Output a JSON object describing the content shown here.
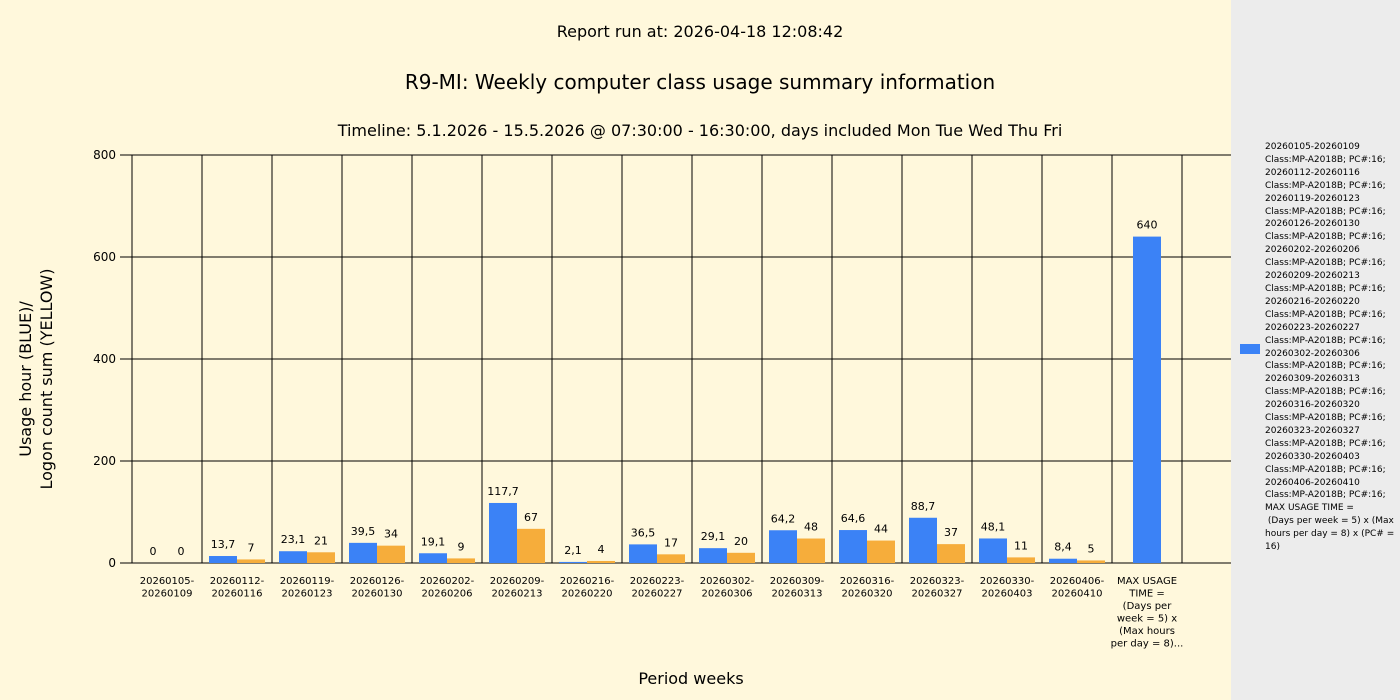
{
  "header": {
    "report_run": "Report run at: 2026-04-18 12:08:42",
    "title": "R9-MI: Weekly computer class usage summary information",
    "timeline": "Timeline:  5.1.2026  - 15.5.2026  @  07:30:00 -  16:30:00, days included Mon Tue Wed Thu Fri"
  },
  "chart_data": {
    "type": "bar",
    "xlabel": "Period weeks",
    "ylabel": "Usage hour (BLUE)/\nLogon count sum (YELLOW)",
    "ylim": [
      0,
      800
    ],
    "yticks": [
      0,
      200,
      400,
      600,
      800
    ],
    "grid": true,
    "legend_position": "right",
    "legend_text": "20260105-20260109 Class:MP-A2018B; PC#:16;\n20260112-20260116 Class:MP-A2018B; PC#:16;\n20260119-20260123 Class:MP-A2018B; PC#:16;\n20260126-20260130 Class:MP-A2018B; PC#:16;\n20260202-20260206 Class:MP-A2018B; PC#:16;\n20260209-20260213 Class:MP-A2018B; PC#:16;\n20260216-20260220 Class:MP-A2018B; PC#:16;\n20260223-20260227 Class:MP-A2018B; PC#:16;\n20260302-20260306 Class:MP-A2018B; PC#:16;\n20260309-20260313 Class:MP-A2018B; PC#:16;\n20260316-20260320 Class:MP-A2018B; PC#:16;\n20260323-20260327 Class:MP-A2018B; PC#:16;\n20260330-20260403 Class:MP-A2018B; PC#:16;\n20260406-20260410 Class:MP-A2018B; PC#:16;\nMAX USAGE TIME =\n (Days per week = 5) x (Max hours per day = 8) x (PC# = 16)",
    "categories": [
      "20260105-\n20260109",
      "20260112-\n20260116",
      "20260119-\n20260123",
      "20260126-\n20260130",
      "20260202-\n20260206",
      "20260209-\n20260213",
      "20260216-\n20260220",
      "20260223-\n20260227",
      "20260302-\n20260306",
      "20260309-\n20260313",
      "20260316-\n20260320",
      "20260323-\n20260327",
      "20260330-\n20260403",
      "20260406-\n20260410",
      "MAX USAGE\nTIME =\n(Days per\nweek = 5) x\n(Max hours\nper day = 8)..."
    ],
    "series": [
      {
        "color": "#3b82f6",
        "values": [
          0,
          13.7,
          23.1,
          39.5,
          19.1,
          117.7,
          2.1,
          36.5,
          29.1,
          64.2,
          64.6,
          88.7,
          48.1,
          8.4,
          640
        ],
        "labels": [
          "0",
          "13,7",
          "23,1",
          "39,5",
          "19,1",
          "117,7",
          "2,1",
          "36,5",
          "29,1",
          "64,2",
          "64,6",
          "88,7",
          "48,1",
          "8,4",
          "640"
        ]
      },
      {
        "color": "#f6ad3b",
        "values": [
          0,
          7,
          21,
          34,
          9,
          67,
          4,
          17,
          20,
          48,
          44,
          37,
          11,
          5,
          null
        ],
        "labels": [
          "0",
          "7",
          "21",
          "34",
          "9",
          "67",
          "4",
          "17",
          "20",
          "48",
          "44",
          "37",
          "11",
          "5",
          ""
        ]
      }
    ]
  }
}
